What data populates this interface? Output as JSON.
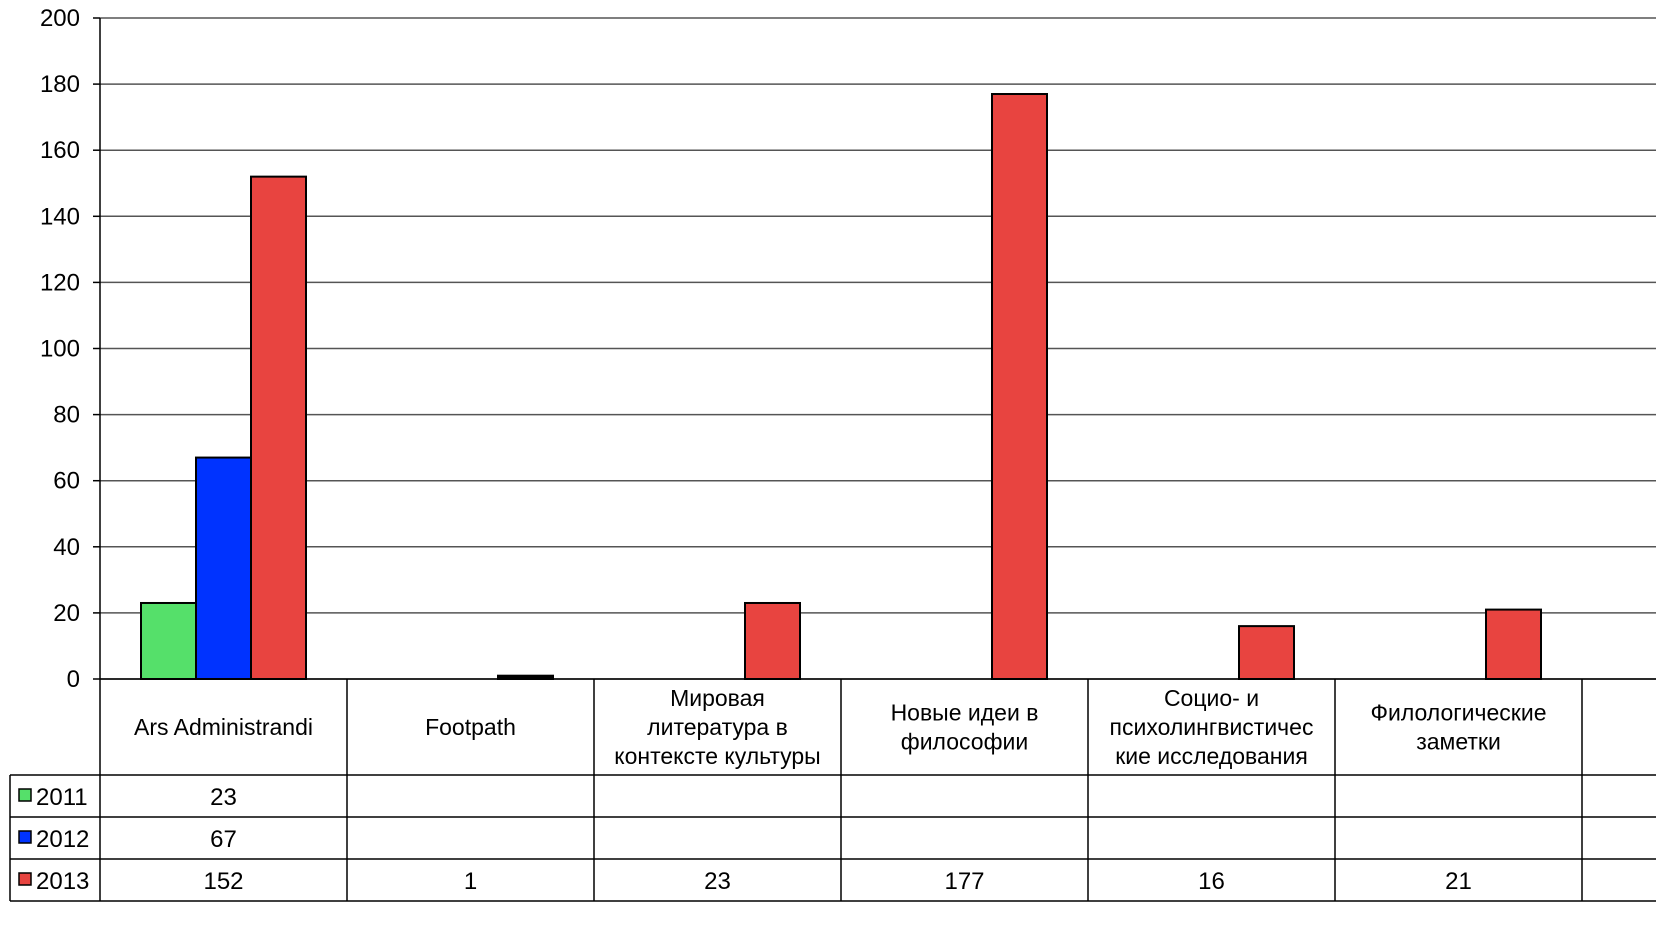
{
  "chart_data": {
    "type": "bar",
    "categories": [
      [
        "Ars Administrandi"
      ],
      [
        "Footpath"
      ],
      [
        "Мировая",
        "литература в",
        "контексте культуры"
      ],
      [
        "Новые идеи в",
        "философии"
      ],
      [
        "Социо- и",
        "психолингвистичес",
        "кие исследования"
      ],
      [
        "Филологические",
        "заметки"
      ]
    ],
    "series": [
      {
        "name": "2011",
        "color": "#55e06a",
        "values": [
          23,
          null,
          null,
          null,
          null,
          null
        ]
      },
      {
        "name": "2012",
        "color": "#0033ff",
        "values": [
          67,
          null,
          null,
          null,
          null,
          null
        ]
      },
      {
        "name": "2013",
        "color": "#e84440",
        "values": [
          152,
          1,
          23,
          177,
          16,
          21
        ]
      }
    ],
    "y_ticks": [
      "0",
      "20",
      "40",
      "60",
      "80",
      "100",
      "120",
      "140",
      "160",
      "180",
      "200"
    ],
    "ylim": [
      0,
      200
    ],
    "grid": true,
    "legend": "data-table-left",
    "table_rows": [
      {
        "series": "2011",
        "cells": [
          "23",
          "",
          "",
          "",
          "",
          ""
        ]
      },
      {
        "series": "2012",
        "cells": [
          "67",
          "",
          "",
          "",
          "",
          ""
        ]
      },
      {
        "series": "2013",
        "cells": [
          "152",
          "1",
          "23",
          "177",
          "16",
          "21"
        ]
      }
    ]
  }
}
